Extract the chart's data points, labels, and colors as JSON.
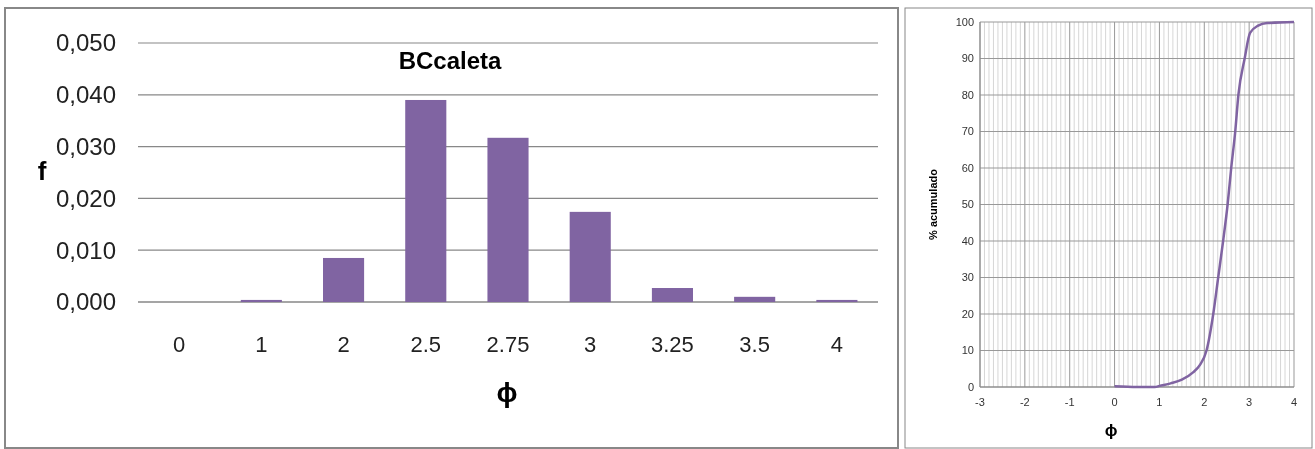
{
  "chart_data": [
    {
      "type": "bar",
      "title": "BCcaleta",
      "xlabel": "ϕ",
      "ylabel": "f",
      "categories": [
        "0",
        "1",
        "2",
        "2.5",
        "2.75",
        "3",
        "3.25",
        "3.5",
        "4"
      ],
      "values": [
        0,
        0.0004,
        0.0085,
        0.039,
        0.0317,
        0.0174,
        0.0027,
        0.001,
        0.0004
      ],
      "color": "#8064a2",
      "ylim": [
        0,
        0.05
      ],
      "yticks": [
        {
          "value": 0,
          "label": "0,000"
        },
        {
          "value": 0.01,
          "label": "0,010"
        },
        {
          "value": 0.02,
          "label": "0,020"
        },
        {
          "value": 0.03,
          "label": "0,030"
        },
        {
          "value": 0.04,
          "label": "0,040"
        },
        {
          "value": 0.05,
          "label": "0,050"
        }
      ],
      "grid": "y"
    },
    {
      "type": "line",
      "xlabel": "ϕ",
      "ylabel": "% acumulado",
      "series": [
        {
          "color": "#8064a2",
          "x": [
            0,
            0.5,
            0.9,
            1,
            1.25,
            1.5,
            1.75,
            1.9,
            2.05,
            2.2,
            2.31,
            2.42,
            2.52,
            2.6,
            2.69,
            2.76,
            2.9,
            3.02,
            3.2,
            3.4,
            4
          ],
          "values": [
            0.2,
            0,
            0,
            0.3,
            1,
            2,
            4,
            6,
            10,
            20,
            30,
            40,
            50,
            60,
            70,
            80,
            90,
            97,
            99,
            99.7,
            100
          ]
        }
      ],
      "xlim": [
        -3,
        4
      ],
      "xticks": [
        -3,
        -2,
        -1,
        0,
        1,
        2,
        3,
        4
      ],
      "ylim": [
        0,
        100
      ],
      "yticks": [
        0,
        10,
        20,
        30,
        40,
        50,
        60,
        70,
        80,
        90,
        100
      ],
      "grid": true,
      "marker": "none",
      "line_style": "solid"
    }
  ]
}
